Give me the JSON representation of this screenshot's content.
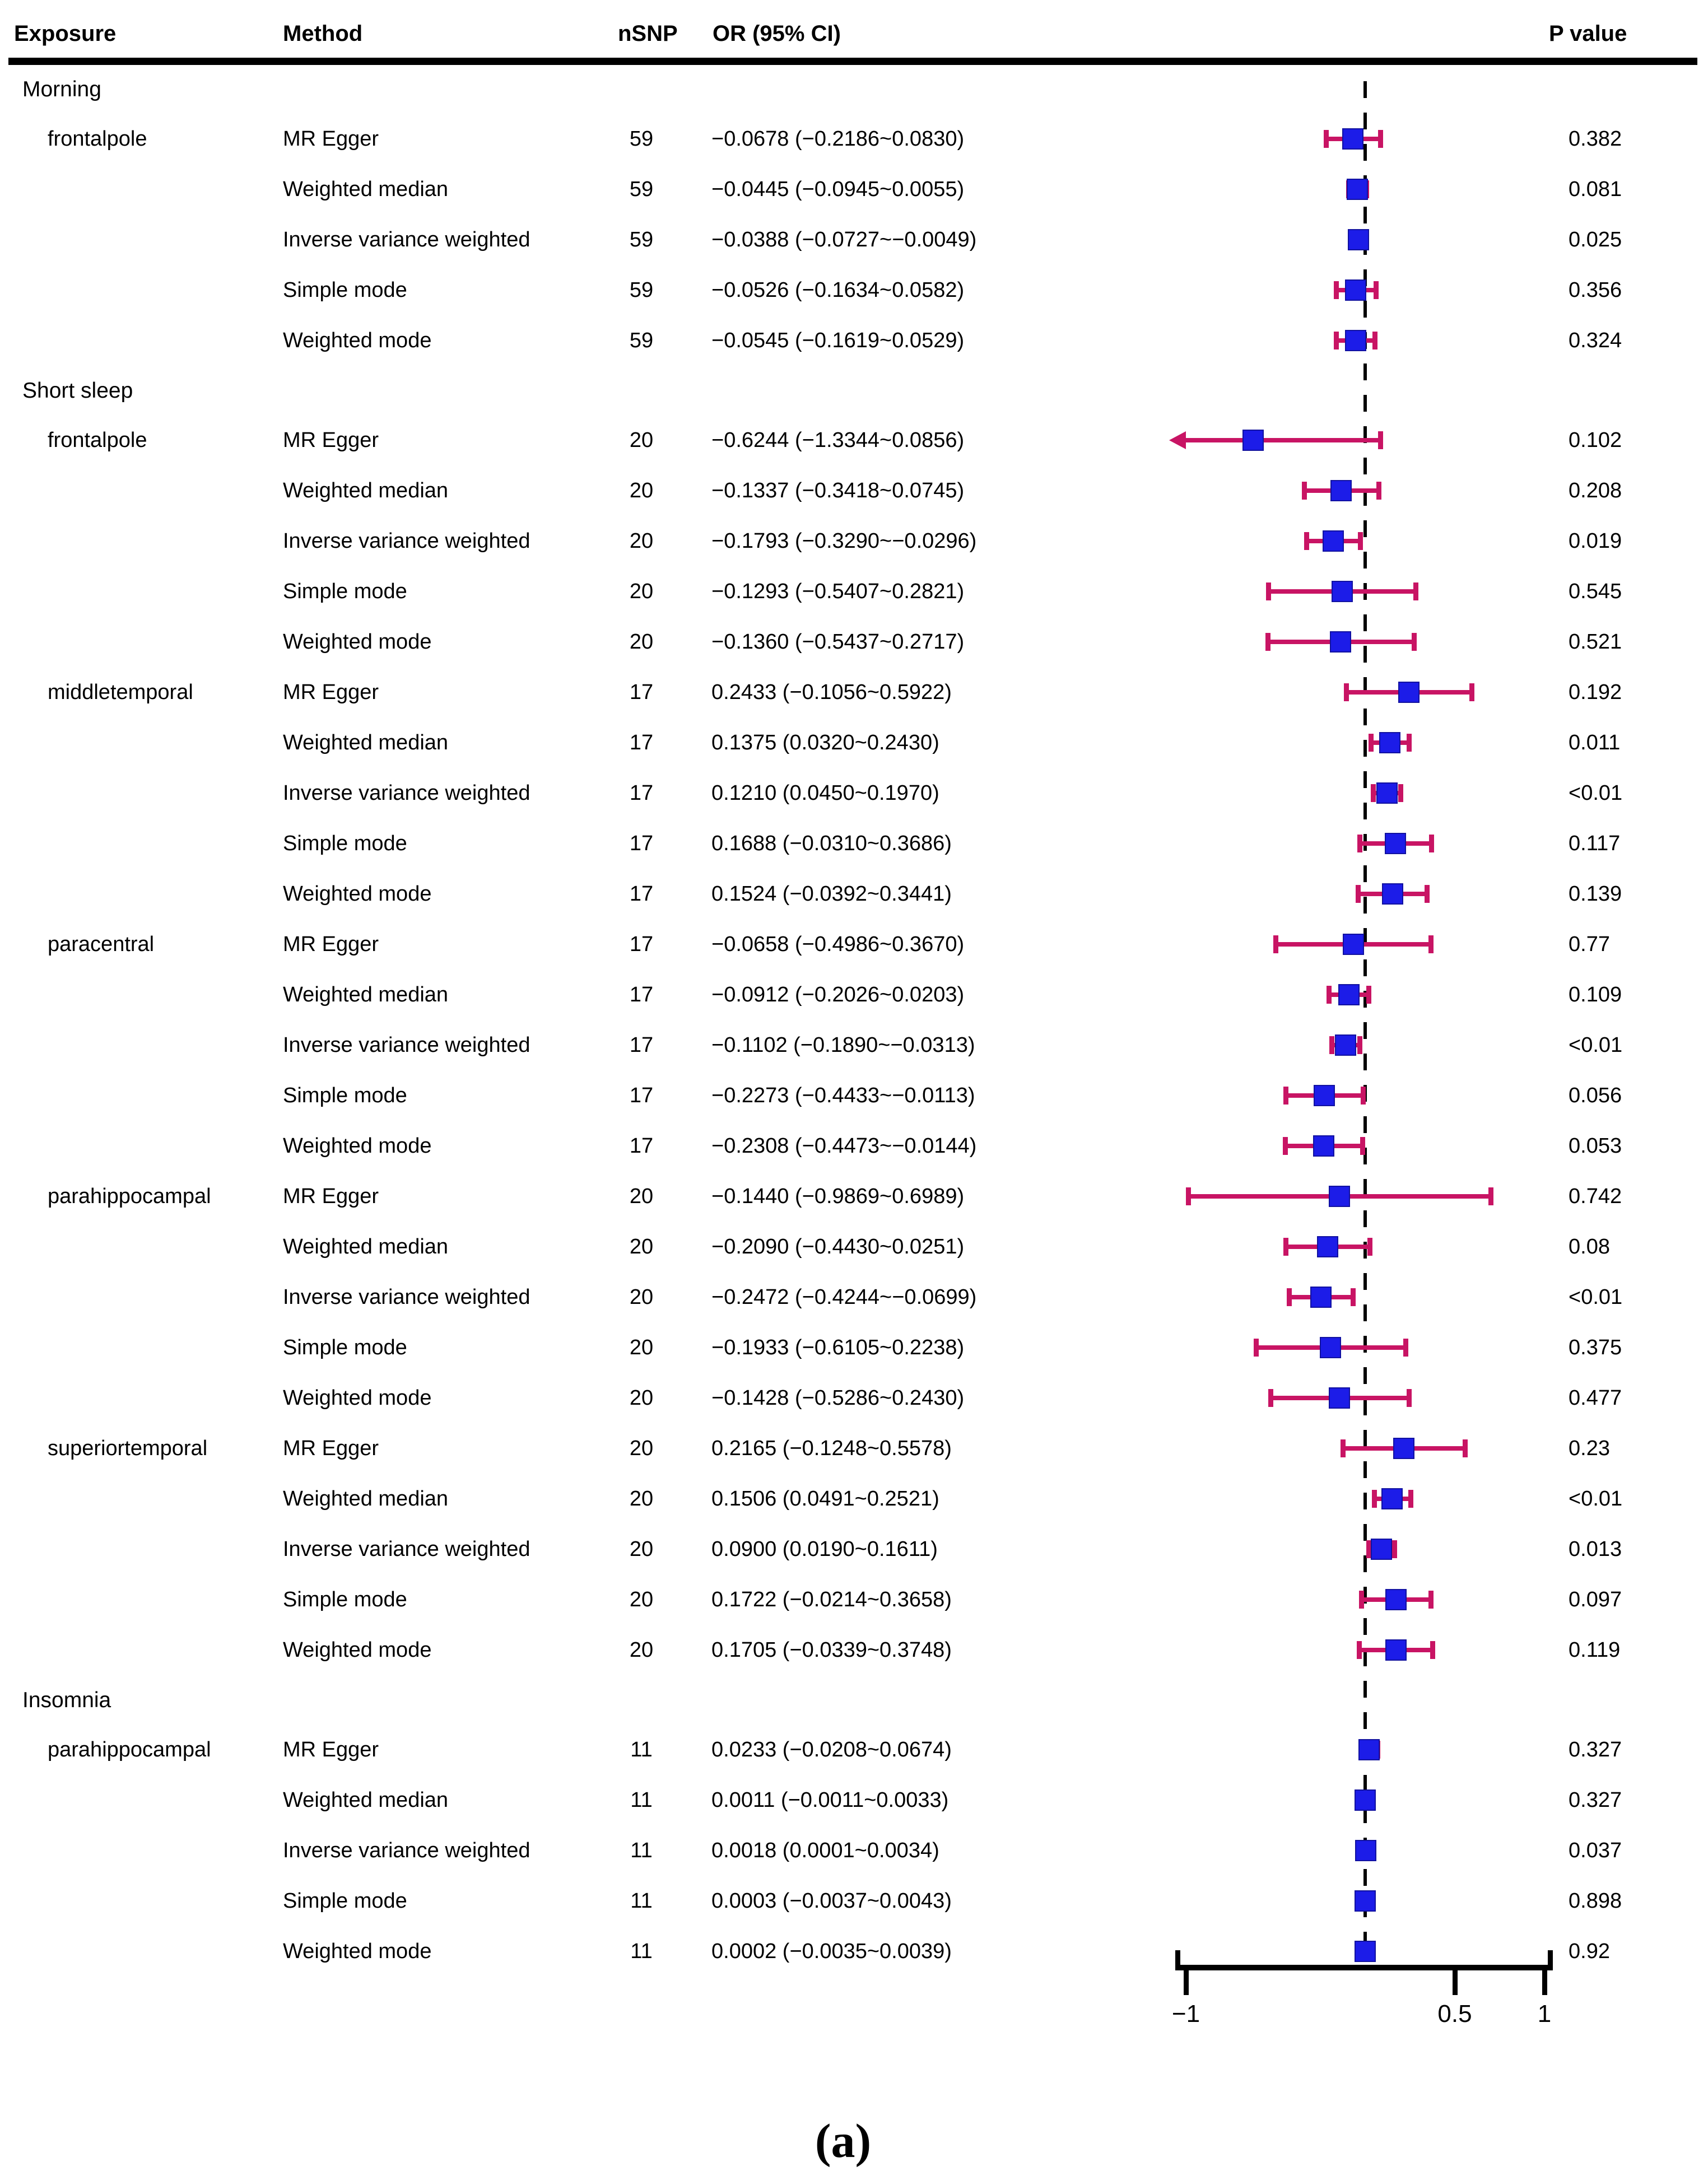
{
  "figure_title": "forest-plot-figure-a",
  "table": {
    "columns": [
      "Exposure",
      "Method",
      "nSNP",
      "OR (95% CI)",
      "P value"
    ]
  },
  "axis": {
    "tick_labels": [
      "−1",
      "0.5",
      "1"
    ],
    "ticks": [
      -1,
      0.5,
      1
    ],
    "xlim": [
      -1,
      1
    ],
    "reference_line": 0
  },
  "caption": "(a)",
  "colors": {
    "marker_blue": "#1c1ce8",
    "ci_crimson": "#c81464",
    "axis_black": "#000000"
  },
  "chart_data": {
    "type": "forest",
    "xlim": [
      -1,
      1
    ],
    "ticks": [
      -1,
      0.5,
      1
    ],
    "reference_line": 0,
    "legend_position": "none",
    "grid": false,
    "sections": [
      {
        "label": "Morning",
        "exposures": [
          {
            "label": "frontalpole",
            "rows": [
              {
                "method": "MR Egger",
                "nsnp": "59",
                "or": -0.0678,
                "lo": -0.2186,
                "hi": 0.083,
                "or_ci": "−0.0678 (−0.2186~0.0830)",
                "p": "0.382"
              },
              {
                "method": "Weighted median",
                "nsnp": "59",
                "or": -0.0445,
                "lo": -0.0945,
                "hi": 0.0055,
                "or_ci": "−0.0445 (−0.0945~0.0055)",
                "p": "0.081"
              },
              {
                "method": "Inverse variance weighted",
                "nsnp": "59",
                "or": -0.0388,
                "lo": -0.0727,
                "hi": -0.0049,
                "or_ci": "−0.0388 (−0.0727~−0.0049)",
                "p": "0.025"
              },
              {
                "method": "Simple mode",
                "nsnp": "59",
                "or": -0.0526,
                "lo": -0.1634,
                "hi": 0.0582,
                "or_ci": "−0.0526 (−0.1634~0.0582)",
                "p": "0.356"
              },
              {
                "method": "Weighted mode",
                "nsnp": "59",
                "or": -0.0545,
                "lo": -0.1619,
                "hi": 0.0529,
                "or_ci": "−0.0545 (−0.1619~0.0529)",
                "p": "0.324"
              }
            ]
          }
        ]
      },
      {
        "label": "Short sleep",
        "exposures": [
          {
            "label": "frontalpole",
            "rows": [
              {
                "method": "MR Egger",
                "nsnp": "20",
                "or": -0.6244,
                "lo": -1.3344,
                "hi": 0.0856,
                "or_ci": "−0.6244 (−1.3344~0.0856)",
                "p": "0.102"
              },
              {
                "method": "Weighted median",
                "nsnp": "20",
                "or": -0.1337,
                "lo": -0.3418,
                "hi": 0.0745,
                "or_ci": "−0.1337 (−0.3418~0.0745)",
                "p": "0.208"
              },
              {
                "method": "Inverse variance weighted",
                "nsnp": "20",
                "or": -0.1793,
                "lo": -0.329,
                "hi": -0.0296,
                "or_ci": "−0.1793 (−0.3290~−0.0296)",
                "p": "0.019"
              },
              {
                "method": "Simple mode",
                "nsnp": "20",
                "or": -0.1293,
                "lo": -0.5407,
                "hi": 0.2821,
                "or_ci": "−0.1293 (−0.5407~0.2821)",
                "p": "0.545"
              },
              {
                "method": "Weighted mode",
                "nsnp": "20",
                "or": -0.136,
                "lo": -0.5437,
                "hi": 0.2717,
                "or_ci": "−0.1360 (−0.5437~0.2717)",
                "p": "0.521"
              }
            ]
          },
          {
            "label": "middletemporal",
            "rows": [
              {
                "method": "MR Egger",
                "nsnp": "17",
                "or": 0.2433,
                "lo": -0.1056,
                "hi": 0.5922,
                "or_ci": "0.2433 (−0.1056~0.5922)",
                "p": "0.192"
              },
              {
                "method": "Weighted median",
                "nsnp": "17",
                "or": 0.1375,
                "lo": 0.032,
                "hi": 0.243,
                "or_ci": "0.1375 (0.0320~0.2430)",
                "p": "0.011"
              },
              {
                "method": "Inverse variance weighted",
                "nsnp": "17",
                "or": 0.121,
                "lo": 0.045,
                "hi": 0.197,
                "or_ci": "0.1210 (0.0450~0.1970)",
                "p": "<0.01"
              },
              {
                "method": "Simple mode",
                "nsnp": "17",
                "or": 0.1688,
                "lo": -0.031,
                "hi": 0.3686,
                "or_ci": "0.1688 (−0.0310~0.3686)",
                "p": "0.117"
              },
              {
                "method": "Weighted mode",
                "nsnp": "17",
                "or": 0.1524,
                "lo": -0.0392,
                "hi": 0.3441,
                "or_ci": "0.1524 (−0.0392~0.3441)",
                "p": "0.139"
              }
            ]
          },
          {
            "label": "paracentral",
            "rows": [
              {
                "method": "MR Egger",
                "nsnp": "17",
                "or": -0.0658,
                "lo": -0.4986,
                "hi": 0.367,
                "or_ci": "−0.0658 (−0.4986~0.3670)",
                "p": "0.77"
              },
              {
                "method": "Weighted median",
                "nsnp": "17",
                "or": -0.0912,
                "lo": -0.2026,
                "hi": 0.0203,
                "or_ci": "−0.0912 (−0.2026~0.0203)",
                "p": "0.109"
              },
              {
                "method": "Inverse variance weighted",
                "nsnp": "17",
                "or": -0.1102,
                "lo": -0.189,
                "hi": -0.0313,
                "or_ci": "−0.1102 (−0.1890~−0.0313)",
                "p": "<0.01"
              },
              {
                "method": "Simple mode",
                "nsnp": "17",
                "or": -0.2273,
                "lo": -0.4433,
                "hi": -0.0113,
                "or_ci": "−0.2273 (−0.4433~−0.0113)",
                "p": "0.056"
              },
              {
                "method": "Weighted mode",
                "nsnp": "17",
                "or": -0.2308,
                "lo": -0.4473,
                "hi": -0.0144,
                "or_ci": "−0.2308 (−0.4473~−0.0144)",
                "p": "0.053"
              }
            ]
          },
          {
            "label": "parahippocampal",
            "rows": [
              {
                "method": "MR Egger",
                "nsnp": "20",
                "or": -0.144,
                "lo": -0.9869,
                "hi": 0.6989,
                "or_ci": "−0.1440 (−0.9869~0.6989)",
                "p": "0.742"
              },
              {
                "method": "Weighted median",
                "nsnp": "20",
                "or": -0.209,
                "lo": -0.443,
                "hi": 0.0251,
                "or_ci": "−0.2090 (−0.4430~0.0251)",
                "p": "0.08"
              },
              {
                "method": "Inverse variance weighted",
                "nsnp": "20",
                "or": -0.2472,
                "lo": -0.4244,
                "hi": -0.0699,
                "or_ci": "−0.2472 (−0.4244~−0.0699)",
                "p": "<0.01"
              },
              {
                "method": "Simple mode",
                "nsnp": "20",
                "or": -0.1933,
                "lo": -0.6105,
                "hi": 0.2238,
                "or_ci": "−0.1933 (−0.6105~0.2238)",
                "p": "0.375"
              },
              {
                "method": "Weighted mode",
                "nsnp": "20",
                "or": -0.1428,
                "lo": -0.5286,
                "hi": 0.243,
                "or_ci": "−0.1428 (−0.5286~0.2430)",
                "p": "0.477"
              }
            ]
          },
          {
            "label": "superiortemporal",
            "rows": [
              {
                "method": "MR Egger",
                "nsnp": "20",
                "or": 0.2165,
                "lo": -0.1248,
                "hi": 0.5578,
                "or_ci": "0.2165 (−0.1248~0.5578)",
                "p": "0.23"
              },
              {
                "method": "Weighted median",
                "nsnp": "20",
                "or": 0.1506,
                "lo": 0.0491,
                "hi": 0.2521,
                "or_ci": "0.1506 (0.0491~0.2521)",
                "p": "<0.01"
              },
              {
                "method": "Inverse variance weighted",
                "nsnp": "20",
                "or": 0.09,
                "lo": 0.019,
                "hi": 0.1611,
                "or_ci": "0.0900 (0.0190~0.1611)",
                "p": "0.013"
              },
              {
                "method": "Simple mode",
                "nsnp": "20",
                "or": 0.1722,
                "lo": -0.0214,
                "hi": 0.3658,
                "or_ci": "0.1722 (−0.0214~0.3658)",
                "p": "0.097"
              },
              {
                "method": "Weighted mode",
                "nsnp": "20",
                "or": 0.1705,
                "lo": -0.0339,
                "hi": 0.3748,
                "or_ci": "0.1705 (−0.0339~0.3748)",
                "p": "0.119"
              }
            ]
          }
        ]
      },
      {
        "label": "Insomnia",
        "exposures": [
          {
            "label": "parahippocampal",
            "rows": [
              {
                "method": "MR Egger",
                "nsnp": "11",
                "or": 0.0233,
                "lo": -0.0208,
                "hi": 0.0674,
                "or_ci": "0.0233 (−0.0208~0.0674)",
                "p": "0.327"
              },
              {
                "method": "Weighted median",
                "nsnp": "11",
                "or": 0.0011,
                "lo": -0.0011,
                "hi": 0.0033,
                "or_ci": "0.0011 (−0.0011~0.0033)",
                "p": "0.327"
              },
              {
                "method": "Inverse variance weighted",
                "nsnp": "11",
                "or": 0.0018,
                "lo": 0.0001,
                "hi": 0.0034,
                "or_ci": "0.0018 (0.0001~0.0034)",
                "p": "0.037"
              },
              {
                "method": "Simple mode",
                "nsnp": "11",
                "or": 0.0003,
                "lo": -0.0037,
                "hi": 0.0043,
                "or_ci": "0.0003 (−0.0037~0.0043)",
                "p": "0.898"
              },
              {
                "method": "Weighted mode",
                "nsnp": "11",
                "or": 0.0002,
                "lo": -0.0035,
                "hi": 0.0039,
                "or_ci": "0.0002 (−0.0035~0.0039)",
                "p": "0.92"
              }
            ]
          }
        ]
      }
    ]
  }
}
